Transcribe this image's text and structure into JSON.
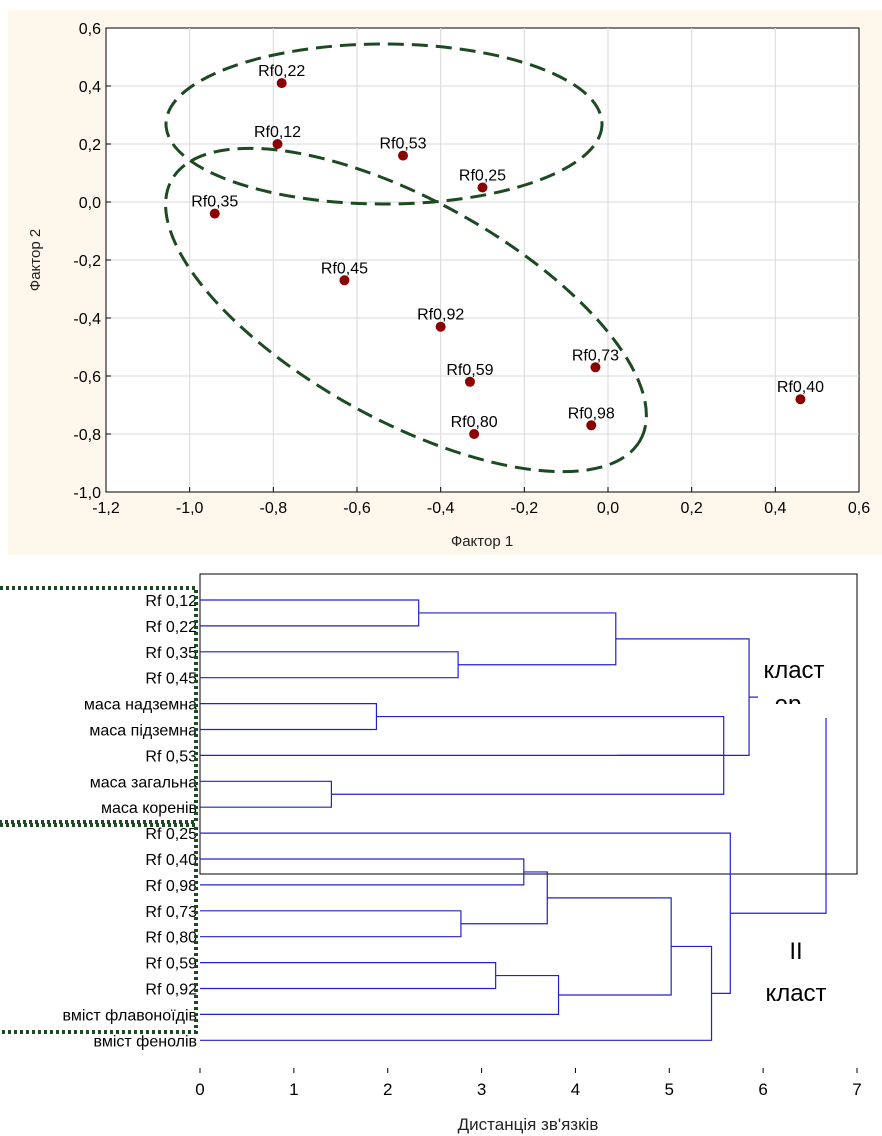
{
  "chart_data": [
    {
      "type": "scatter",
      "title": "",
      "xlabel": "Фактор 1",
      "ylabel": "Фактор 2",
      "xlim": [
        -1.2,
        0.6
      ],
      "ylim": [
        -1.0,
        0.6
      ],
      "xticks": [
        "-1,2",
        "-1,0",
        "-0,8",
        "-0,6",
        "-0,4",
        "-0,2",
        "0,0",
        "0,2",
        "0,4",
        "0,6"
      ],
      "yticks": [
        "0,6",
        "0,4",
        "0,2",
        "0,0",
        "-0,2",
        "-0,4",
        "-0,6",
        "-0,8",
        "-1,0"
      ],
      "grid": true,
      "background": "#fdf7ec",
      "point_color": "#8b0000",
      "group_outline_color": "#1d4a22",
      "points": [
        {
          "label": "Rf0,22",
          "x": -0.78,
          "y": 0.41
        },
        {
          "label": "Rf0,12",
          "x": -0.79,
          "y": 0.2
        },
        {
          "label": "Rf0,53",
          "x": -0.49,
          "y": 0.16
        },
        {
          "label": "Rf0,25",
          "x": -0.3,
          "y": 0.05
        },
        {
          "label": "Rf0,35",
          "x": -0.94,
          "y": -0.04
        },
        {
          "label": "Rf0,45",
          "x": -0.63,
          "y": -0.27
        },
        {
          "label": "Rf0,92",
          "x": -0.4,
          "y": -0.43
        },
        {
          "label": "Rf0,59",
          "x": -0.33,
          "y": -0.62
        },
        {
          "label": "Rf0,73",
          "x": -0.03,
          "y": -0.57
        },
        {
          "label": "Rf0,80",
          "x": -0.32,
          "y": -0.8
        },
        {
          "label": "Rf0,98",
          "x": -0.04,
          "y": -0.77
        },
        {
          "label": "Rf0,40",
          "x": 0.46,
          "y": -0.68
        }
      ]
    },
    {
      "type": "dendrogram",
      "xlabel": "Дистанція зв'язків",
      "xlim": [
        0,
        7
      ],
      "xticks": [
        "0",
        "1",
        "2",
        "3",
        "4",
        "5",
        "6",
        "7"
      ],
      "line_color": "#2222cc",
      "group_outline_color": "#1d4a22",
      "leaves": [
        "Rf 0,12",
        "Rf 0,22",
        "Rf 0,35",
        "Rf 0,45",
        "маса надземна",
        "маса підземна",
        "Rf 0,53",
        "маса загальна",
        "маса коренів",
        "Rf 0,25",
        "Rf 0,40",
        "Rf 0,98",
        "Rf 0,73",
        "Rf 0,80",
        "Rf 0,59",
        "Rf 0,92",
        "вміст флавоноїдів",
        "вміст фенолів"
      ],
      "merges": [
        {
          "a": 0,
          "b": 1,
          "h": 2.33
        },
        {
          "a": 2,
          "b": 3,
          "h": 2.75
        },
        {
          "a": 4,
          "b": 5,
          "h": 1.88
        },
        {
          "a": 7,
          "b": 8,
          "h": 1.4
        },
        {
          "a": 18,
          "b": 19,
          "h": 4.43
        },
        {
          "a": 20,
          "b": 21,
          "h": 5.58
        },
        {
          "a": 6,
          "b": 23,
          "h": 4.45
        },
        {
          "a": 22,
          "b": 24,
          "h": 5.85
        },
        {
          "a": 10,
          "b": 11,
          "h": 3.45
        },
        {
          "a": 12,
          "b": 13,
          "h": 2.78
        },
        {
          "a": 26,
          "b": 27,
          "h": 3.7
        },
        {
          "a": 14,
          "b": 15,
          "h": 3.15
        },
        {
          "a": 29,
          "b": 16,
          "h": 3.82
        },
        {
          "a": 28,
          "b": 30,
          "h": 5.02
        },
        {
          "a": 31,
          "b": 17,
          "h": 5.45
        },
        {
          "a": 9,
          "b": 32,
          "h": 5.65
        },
        {
          "a": 25,
          "b": 33,
          "h": 6.67
        }
      ],
      "annotations": {
        "cluster1_line1": "класт",
        "cluster1_line2": "ер",
        "cluster2_line1": "II",
        "cluster2_line2": "класт"
      }
    }
  ]
}
